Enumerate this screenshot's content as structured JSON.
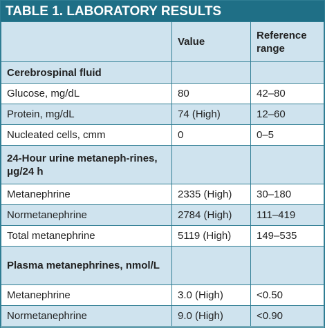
{
  "title": "TABLE 1. LABORATORY RESULTS",
  "header": {
    "value": "Value",
    "reference": "Reference range"
  },
  "sections": [
    {
      "label": "Cerebrospinal fluid",
      "rows": [
        [
          "Glucose, mg/dL",
          "80",
          "42–80"
        ],
        [
          "Protein, mg/dL",
          "74 (High)",
          "12–60"
        ],
        [
          "Nucleated cells, cmm",
          "0",
          "0–5"
        ]
      ]
    },
    {
      "label": "24-Hour urine metaneph-rines, μg/24 h",
      "rows": [
        [
          "Metanephrine",
          "2335 (High)",
          "30–180"
        ],
        [
          "Normetanephrine",
          "2784 (High)",
          "111–419"
        ],
        [
          "Total metanephrine",
          "5119 (High)",
          "149–535"
        ]
      ]
    },
    {
      "label": "Plasma metanephrines, nmol/L",
      "rows": [
        [
          "Metanephrine",
          "3.0 (High)",
          "<0.50"
        ],
        [
          "Normetanephrine",
          "9.0 (High)",
          "<0.90"
        ]
      ]
    }
  ]
}
